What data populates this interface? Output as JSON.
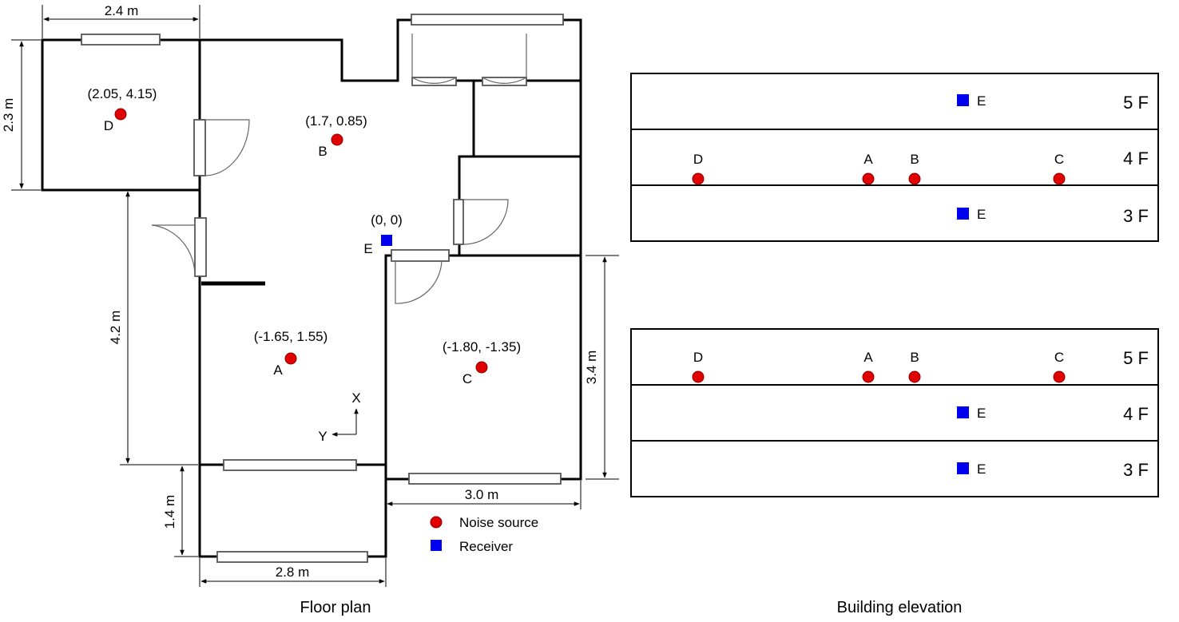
{
  "floor_plan": {
    "caption": "Floor plan",
    "dimensions": {
      "top_width": "2.4 m",
      "left_height": "2.3 m",
      "mid_height": "4.2 m",
      "right_height": "3.4 m",
      "bottom_height": "1.4 m",
      "bottom_width": "2.8 m",
      "right_width": "3.0 m"
    },
    "points": {
      "D": {
        "label": "D",
        "coord": "(2.05, 4.15)",
        "kind": "source"
      },
      "B": {
        "label": "B",
        "coord": "(1.7, 0.85)",
        "kind": "source"
      },
      "A": {
        "label": "A",
        "coord": "(-1.65, 1.55)",
        "kind": "source"
      },
      "C": {
        "label": "C",
        "coord": "(-1.80, -1.35)",
        "kind": "source"
      },
      "E": {
        "label": "E",
        "coord": "(0, 0)",
        "kind": "receiver"
      }
    },
    "axes": {
      "x": "X",
      "y": "Y"
    },
    "legend": {
      "source": "Noise source",
      "receiver": "Receiver"
    }
  },
  "elevation": {
    "caption": "Building elevation",
    "upper": {
      "floors": [
        "5 F",
        "4 F",
        "3 F"
      ],
      "sources_floor": "4 F",
      "receiver_floors": [
        "5 F",
        "3 F"
      ]
    },
    "lower": {
      "floors": [
        "5 F",
        "4 F",
        "3 F"
      ],
      "sources_floor": "5 F",
      "receiver_floors": [
        "4 F",
        "3 F"
      ]
    },
    "source_labels": [
      "D",
      "A",
      "B",
      "C"
    ],
    "receiver_label": "E"
  },
  "colors": {
    "source": "#e00000",
    "receiver": "#0000ee"
  }
}
